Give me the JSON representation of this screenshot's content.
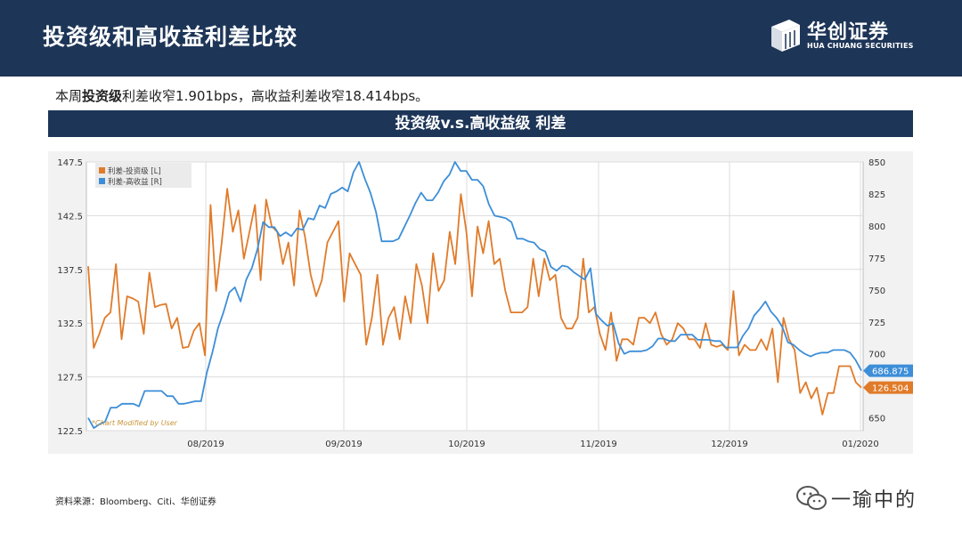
{
  "header": {
    "title": "投资级和高收益利差比较"
  },
  "logo": {
    "cn": "华创证券",
    "en": "HUA CHUANG SECURITIES"
  },
  "summary": {
    "prefix": "本周",
    "bold": "投资级",
    "rest": "利差收窄1.901bps，高收益利差收窄18.414bps。"
  },
  "banner": {
    "title": "投资级v.s.高收益级 利差"
  },
  "source": {
    "text": "资料来源：Bloomberg、Citi、华创证券"
  },
  "watermark": {
    "text": "一瑜中的"
  },
  "colors": {
    "header_bg": "#1d3557",
    "ig": "#e07b2a",
    "hy": "#3d8ed8",
    "plot_bg": "#ffffff",
    "frame_bg": "#f2f2f2"
  },
  "chart_data": {
    "type": "line",
    "title": "",
    "watermark_note": "*Chart Modified by User",
    "x_ticks": [
      "08/2019",
      "09/2019",
      "10/2019",
      "11/2019",
      "12/2019",
      "01/2020"
    ],
    "y_left": {
      "ticks": [
        "147.5",
        "142.5",
        "137.5",
        "132.5",
        "127.5",
        "122.5"
      ],
      "ylim": [
        122.5,
        147.5
      ]
    },
    "y_right": {
      "ticks": [
        "850",
        "825",
        "800",
        "775",
        "750",
        "725",
        "700",
        "675",
        "650"
      ],
      "ylim": [
        640,
        850
      ]
    },
    "grid": true,
    "legend": "top-left",
    "series": [
      {
        "name": "利差-投资级 [L]",
        "axis": "left",
        "last_value_label": "126.504",
        "values": [
          137.8,
          130.2,
          131.5,
          133.0,
          133.5,
          138.0,
          131.0,
          135.0,
          134.8,
          134.5,
          131.5,
          137.2,
          134.0,
          134.2,
          134.3,
          132.0,
          133.0,
          130.2,
          130.3,
          131.8,
          132.5,
          129.5,
          143.5,
          135.5,
          140.0,
          145.0,
          141.0,
          143.0,
          138.5,
          141.0,
          143.5,
          136.5,
          144.0,
          141.5,
          141.0,
          138.0,
          140.0,
          136.0,
          143.0,
          140.5,
          137.0,
          135.0,
          136.5,
          140.0,
          141.0,
          142.0,
          134.5,
          139.0,
          138.0,
          137.0,
          130.5,
          133.0,
          137.0,
          130.5,
          133.0,
          134.0,
          131.0,
          135.0,
          132.5,
          138.0,
          136.0,
          132.5,
          139.0,
          135.5,
          136.5,
          141.0,
          138.0,
          144.5,
          141.0,
          135.0,
          141.5,
          139.0,
          142.0,
          138.0,
          138.5,
          135.5,
          133.5,
          133.5,
          133.5,
          134.0,
          138.5,
          135.0,
          138.5,
          136.5,
          137.0,
          133.0,
          132.0,
          132.0,
          133.0,
          138.5,
          133.5,
          134.0,
          131.5,
          130.0,
          133.5,
          129.0,
          131.0,
          131.0,
          130.5,
          133.0,
          133.0,
          132.5,
          133.5,
          131.5,
          130.5,
          131.0,
          132.5,
          132.0,
          131.0,
          131.0,
          130.2,
          132.5,
          130.5,
          130.3,
          130.5,
          130.0,
          135.5,
          129.5,
          130.5,
          130.0,
          130.0,
          131.0,
          130.0,
          132.0,
          127.0,
          133.0,
          131.0,
          130.0,
          126.0,
          127.0,
          125.5,
          126.5,
          124.0,
          126.0,
          126.0,
          128.5,
          128.5,
          128.5,
          127.0,
          126.5
        ]
      },
      {
        "name": "利差-高收益 [R]",
        "axis": "right",
        "last_value_label": "686.875",
        "values": [
          650,
          642,
          645,
          647,
          658,
          658,
          661,
          661,
          661,
          659,
          671,
          671,
          671,
          671,
          667,
          667,
          661,
          661,
          662,
          663,
          663,
          685,
          701,
          720,
          733,
          748,
          752,
          741,
          758,
          767,
          782,
          803,
          799,
          799,
          792,
          795,
          792,
          798,
          797,
          806,
          805,
          816,
          814,
          825,
          827,
          830,
          827,
          842,
          850,
          837,
          826,
          811,
          788,
          788,
          788,
          790,
          799,
          808,
          818,
          826,
          820,
          820,
          826,
          835,
          840,
          850,
          843,
          843,
          836,
          836,
          831,
          817,
          808,
          807,
          806,
          803,
          790,
          790,
          788,
          787,
          782,
          780,
          768,
          765,
          769,
          768,
          764,
          761,
          758,
          767,
          731,
          726,
          722,
          724,
          708,
          700,
          702,
          702,
          702,
          703,
          706,
          712,
          712,
          710,
          710,
          715,
          715,
          715,
          711,
          711,
          711,
          710,
          710,
          705,
          705,
          705,
          714,
          720,
          730,
          735,
          741,
          733,
          728,
          721,
          709,
          707,
          703,
          700,
          698,
          700,
          701,
          701,
          703,
          703,
          703,
          701,
          695,
          686.875
        ]
      }
    ]
  }
}
